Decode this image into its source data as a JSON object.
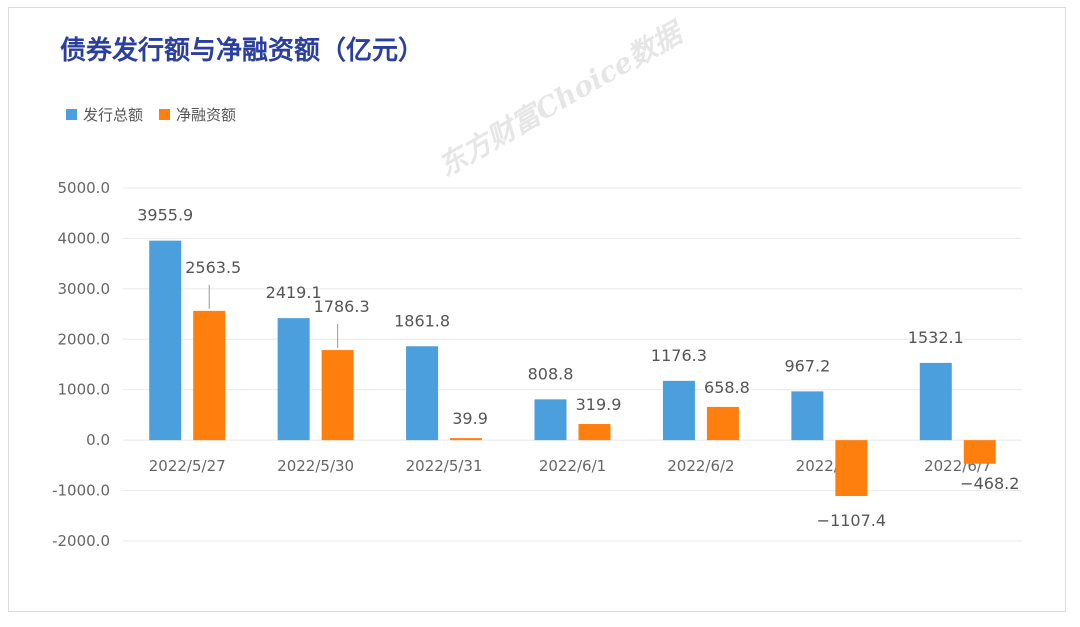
{
  "title": "债券发行额与净融资额（亿元）",
  "watermark": "东方财富Choice数据",
  "colors": {
    "series1": "#4a9fdc",
    "series2": "#ff7f0e",
    "title": "#2b3f9e",
    "grid": "#e8e8e8"
  },
  "chart_data": {
    "type": "bar",
    "categories": [
      "2022/5/27",
      "2022/5/30",
      "2022/5/31",
      "2022/6/1",
      "2022/6/2",
      "2022/6/6",
      "2022/6/7"
    ],
    "series": [
      {
        "name": "发行总额",
        "values": [
          3955.9,
          2419.1,
          1861.8,
          808.8,
          1176.3,
          967.2,
          1532.1
        ]
      },
      {
        "name": "净融资额",
        "values": [
          2563.5,
          1786.3,
          39.9,
          319.9,
          658.8,
          -1107.4,
          -468.2
        ]
      }
    ],
    "value_labels": [
      [
        "3955.9",
        "2419.1",
        "1861.8",
        "808.8",
        "1176.3",
        "967.2",
        "1532.1"
      ],
      [
        "2563.5",
        "1786.3",
        "39.9",
        "319.9",
        "658.8",
        "−1107.4",
        "−468.2"
      ]
    ],
    "yticks": [
      "5000.0",
      "4000.0",
      "3000.0",
      "2000.0",
      "1000.0",
      "0.0",
      "-1000.0",
      "-2000.0"
    ],
    "ylim": [
      -2000,
      5000
    ],
    "grid": true,
    "legend_position": "top-left"
  }
}
